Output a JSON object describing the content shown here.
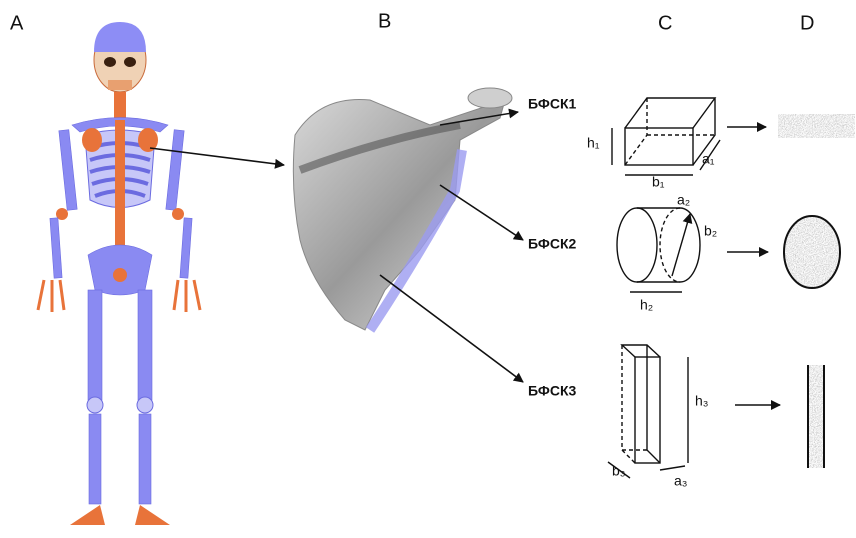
{
  "panels": [
    "A",
    "B",
    "C",
    "D"
  ],
  "units": [
    {
      "name": "БФСК1",
      "dims": [
        "h₁",
        "b₁",
        "a₁"
      ]
    },
    {
      "name": "БФСК2",
      "dims": [
        "a₂",
        "b₂",
        "h₂"
      ]
    },
    {
      "name": "БФСК3",
      "dims": [
        "h₃",
        "b₃",
        "a₃"
      ]
    }
  ]
}
